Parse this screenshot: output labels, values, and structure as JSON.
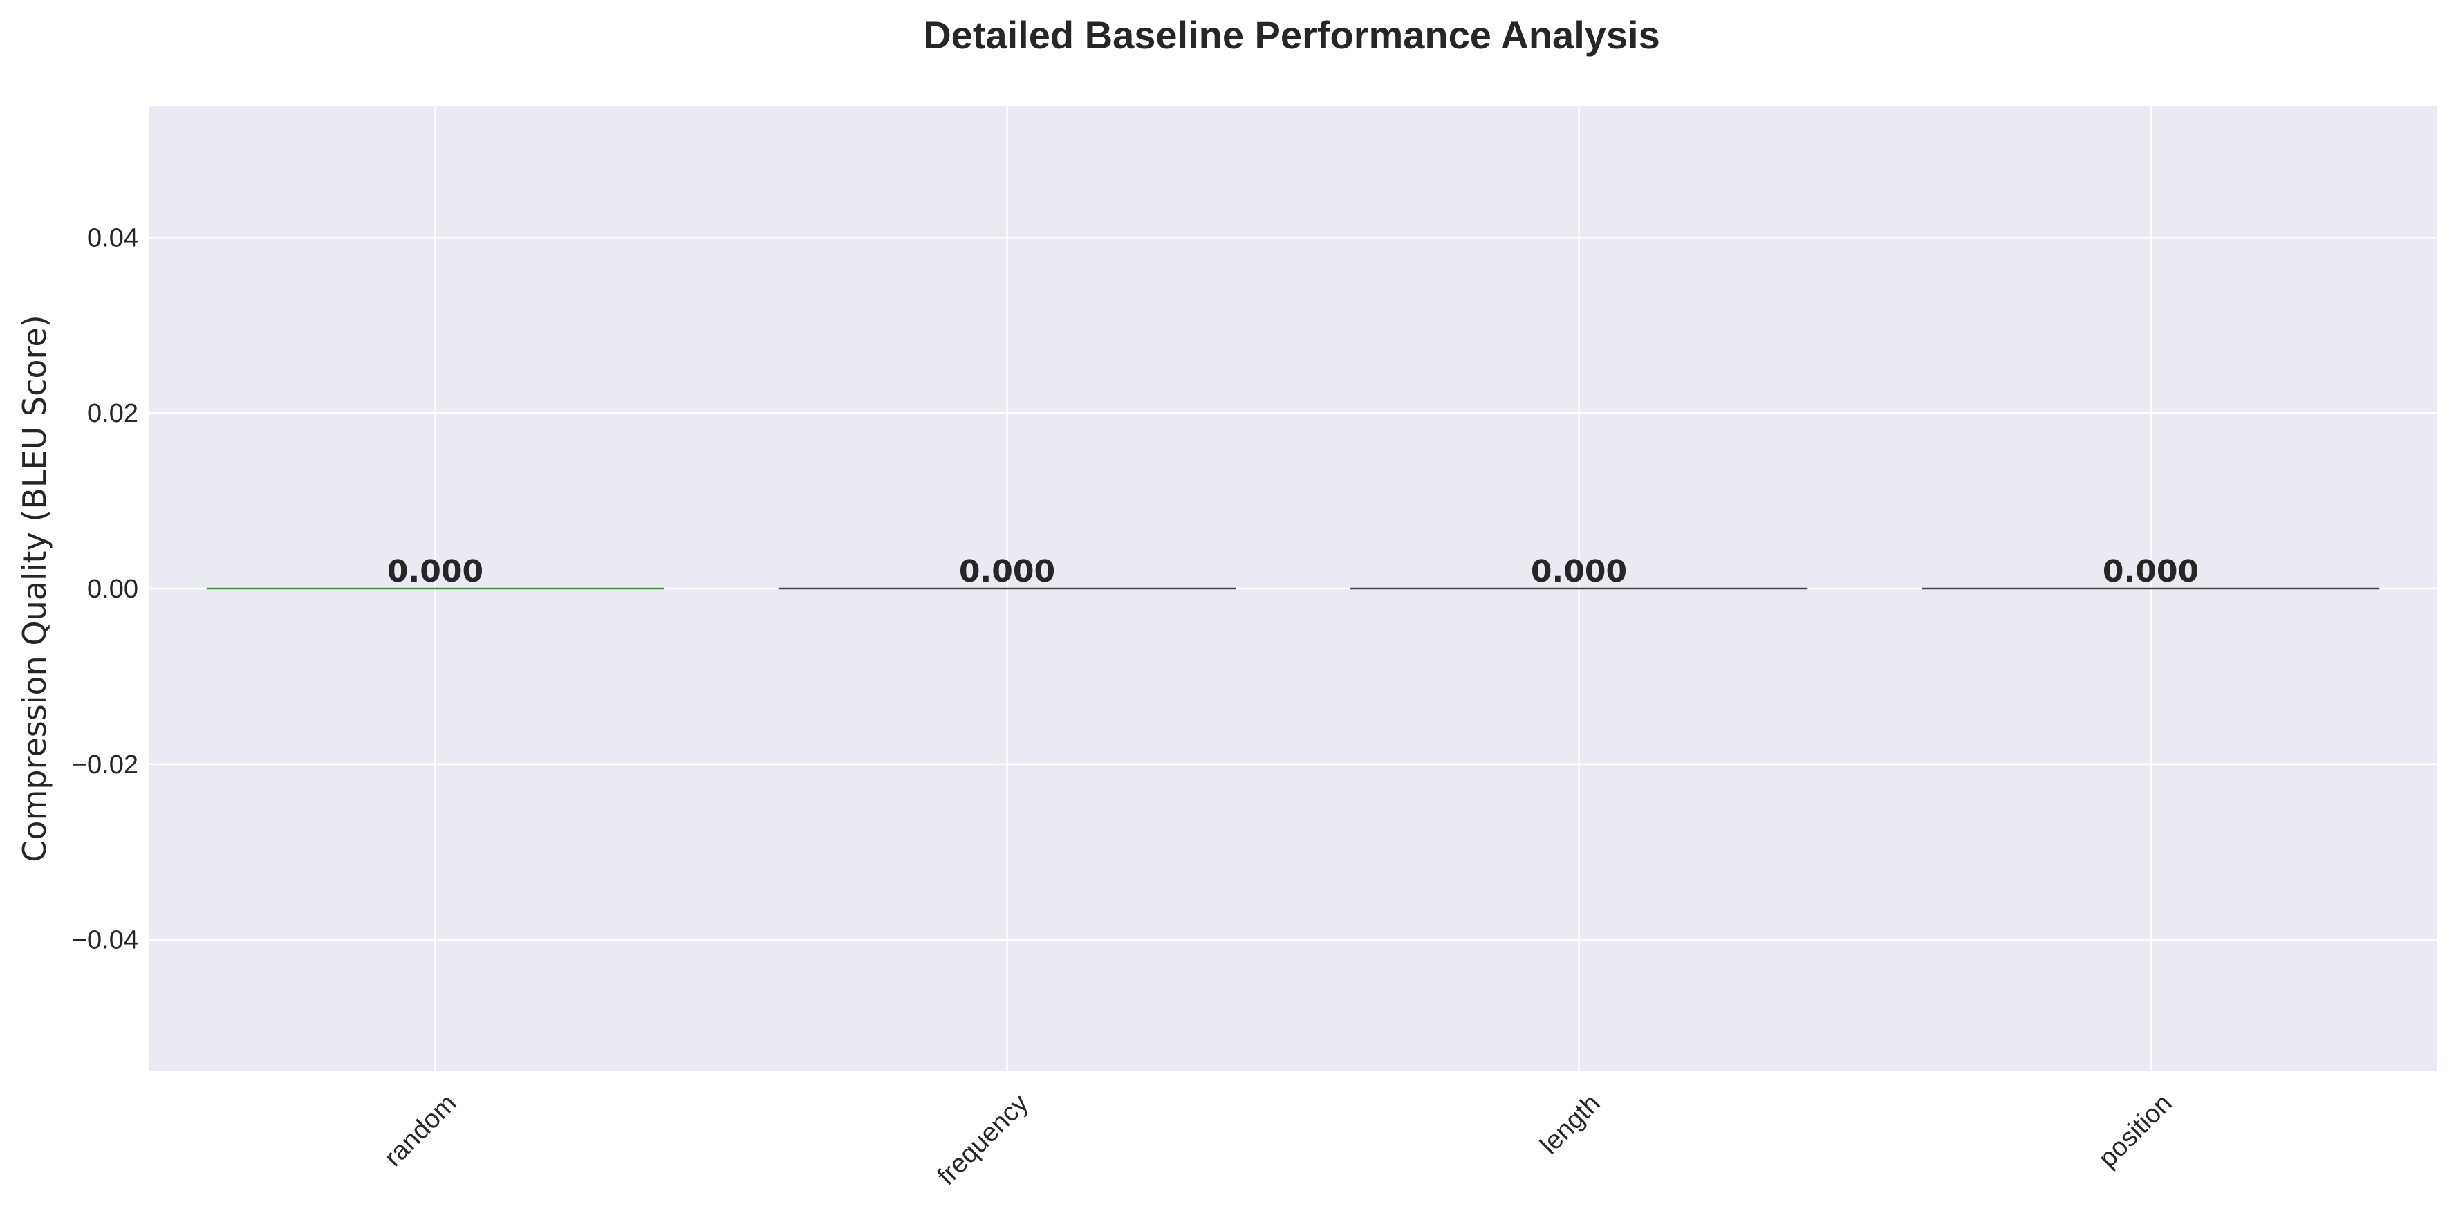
{
  "chart_data": {
    "type": "bar",
    "title": "Detailed Baseline Performance Analysis",
    "xlabel": "",
    "ylabel": "Compression Quality (BLEU Score)",
    "categories": [
      "random",
      "frequency",
      "length",
      "position"
    ],
    "values": [
      0.0,
      0.0,
      0.0,
      0.0
    ],
    "data_labels": [
      "0.000",
      "0.000",
      "0.000",
      "0.000"
    ],
    "bar_colors": [
      "#2ca02c",
      "#444444",
      "#444444",
      "#444444"
    ],
    "ylim": [
      -0.055,
      0.055
    ],
    "yticks": [
      -0.04,
      -0.02,
      0.0,
      0.02,
      0.04
    ],
    "ytick_labels": [
      "−0.04",
      "−0.02",
      "0.00",
      "0.02",
      "0.04"
    ],
    "grid": true,
    "legend": "none",
    "colors": {
      "plot_background": "#eaeaf2",
      "grid": "#ffffff",
      "text": "#262626"
    }
  }
}
